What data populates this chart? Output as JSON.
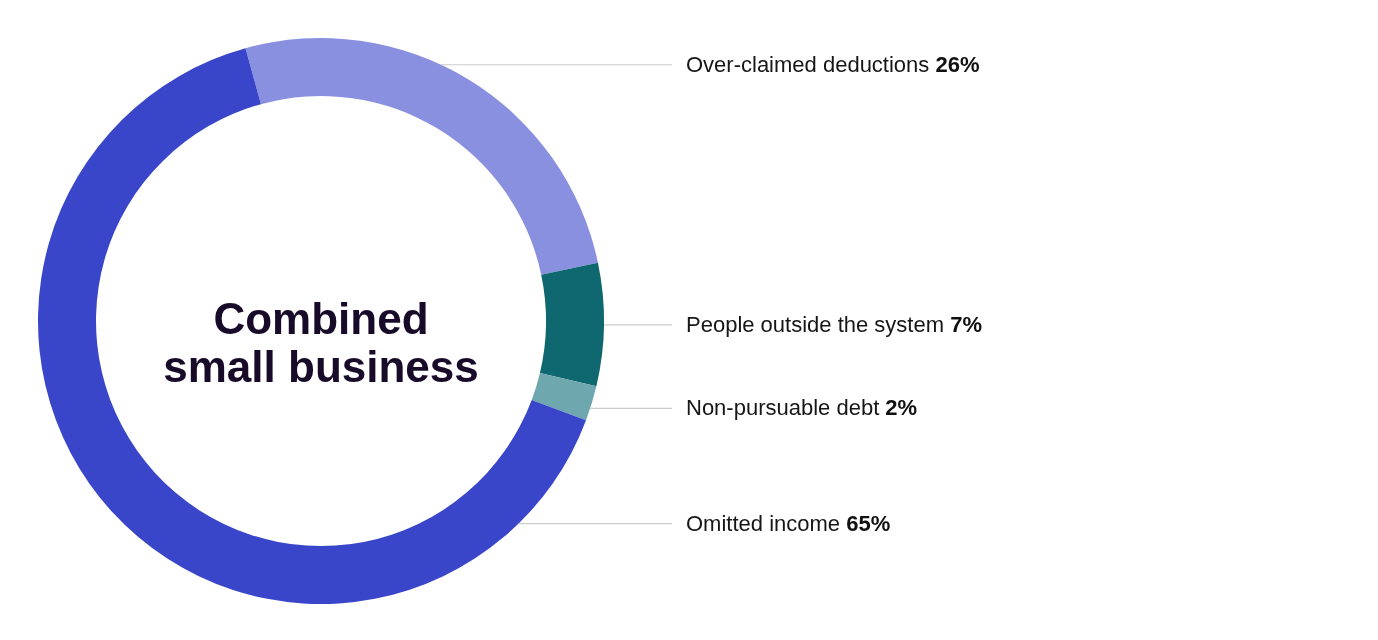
{
  "chart_data": {
    "type": "donut",
    "title": "Combined small business",
    "categories": [
      "Over-claimed deductions",
      "People outside the system",
      "Non-pursuable debt",
      "Omitted income"
    ],
    "values": [
      26,
      7,
      2,
      65
    ],
    "value_labels": [
      "26%",
      "7%",
      "2%",
      "65%"
    ],
    "colors": [
      "#8a90e0",
      "#0f6870",
      "#6fa7ae",
      "#3a46c9"
    ]
  }
}
